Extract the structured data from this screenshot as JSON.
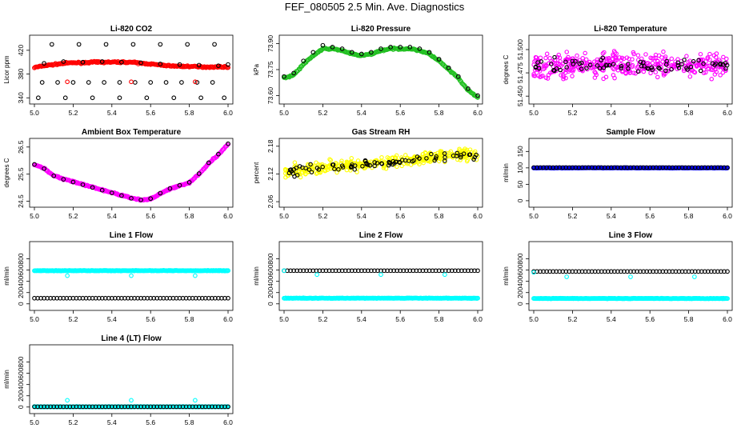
{
  "page": {
    "title": "FEF_080505  2.5 Min. Ave. Diagnostics"
  },
  "chart_data": [
    {
      "id": "co2",
      "type": "scatter",
      "title": "Li-820 CO2",
      "ylabel": "Licor ppm",
      "xlim": [
        5.0,
        6.0
      ],
      "ylim": [
        335,
        440
      ],
      "xticks": [
        "5.0",
        "5.2",
        "5.4",
        "5.6",
        "5.8",
        "6.0"
      ],
      "yticks": [
        "340",
        "380",
        "420"
      ],
      "series": [
        {
          "color": "#ff0000",
          "style": "dense",
          "x": [
            5.0,
            5.05,
            5.1,
            5.15,
            5.2,
            5.25,
            5.3,
            5.35,
            5.4,
            5.45,
            5.5,
            5.55,
            5.6,
            5.65,
            5.7,
            5.75,
            5.8,
            5.85,
            5.9,
            5.95,
            6.0
          ],
          "y": [
            391,
            394,
            396,
            398,
            399,
            399,
            400,
            400,
            400,
            400,
            400,
            398,
            397,
            395,
            394,
            393,
            393,
            392,
            392,
            392,
            392
          ]
        },
        {
          "color": "#000000",
          "style": "circles",
          "x": [
            5.02,
            5.09,
            5.16,
            5.23,
            5.3,
            5.37,
            5.44,
            5.51,
            5.58,
            5.65,
            5.72,
            5.79,
            5.86,
            5.93,
            5.98,
            5.04,
            5.12,
            5.2,
            5.28,
            5.36,
            5.44,
            5.52,
            5.6,
            5.68,
            5.76,
            5.84,
            5.92
          ],
          "y": [
            340,
            430,
            340,
            430,
            340,
            430,
            340,
            430,
            340,
            430,
            340,
            430,
            340,
            430,
            340,
            366,
            366,
            366,
            366,
            366,
            366,
            366,
            366,
            366,
            366,
            366,
            366
          ]
        },
        {
          "color": "#000000",
          "style": "circles",
          "x": [
            5.05,
            5.15,
            5.25,
            5.35,
            5.45,
            5.55,
            5.65,
            5.75,
            5.85,
            5.95,
            6.0
          ],
          "y": [
            398,
            401,
            400,
            401,
            400,
            399,
            397,
            396,
            395,
            394,
            396
          ]
        },
        {
          "color": "#ff0000",
          "style": "circles",
          "x": [
            5.17,
            5.5,
            5.83
          ],
          "y": [
            367,
            367,
            367
          ]
        }
      ]
    },
    {
      "id": "pressure",
      "type": "scatter",
      "title": "Li-820 Pressure",
      "ylabel": "kPa",
      "xlim": [
        5.0,
        6.0
      ],
      "ylim": [
        73.57,
        73.93
      ],
      "xticks": [
        "5.0",
        "5.2",
        "5.4",
        "5.6",
        "5.8",
        "6.0"
      ],
      "yticks": [
        "73.60",
        "73.75",
        "73.90"
      ],
      "series": [
        {
          "color": "#22c022",
          "style": "dense",
          "x": [
            5.0,
            5.05,
            5.1,
            5.15,
            5.2,
            5.25,
            5.3,
            5.35,
            5.4,
            5.45,
            5.5,
            5.55,
            5.6,
            5.65,
            5.7,
            5.75,
            5.8,
            5.85,
            5.9,
            5.95,
            6.0
          ],
          "y": [
            73.7,
            73.72,
            73.78,
            73.83,
            73.87,
            73.87,
            73.86,
            73.84,
            73.83,
            73.84,
            73.86,
            73.87,
            73.87,
            73.87,
            73.86,
            73.84,
            73.8,
            73.75,
            73.7,
            73.63,
            73.59
          ]
        },
        {
          "color": "#000000",
          "style": "circles",
          "x": [
            5.0,
            5.05,
            5.1,
            5.15,
            5.2,
            5.25,
            5.3,
            5.35,
            5.4,
            5.45,
            5.5,
            5.55,
            5.6,
            5.65,
            5.7,
            5.75,
            5.8,
            5.85,
            5.9,
            5.95,
            6.0
          ],
          "y": [
            73.71,
            73.73,
            73.8,
            73.85,
            73.89,
            73.88,
            73.87,
            73.85,
            73.84,
            73.85,
            73.87,
            73.88,
            73.88,
            73.88,
            73.87,
            73.85,
            73.81,
            73.76,
            73.71,
            73.64,
            73.6
          ]
        }
      ]
    },
    {
      "id": "licor-temp",
      "type": "scatter",
      "title": "Li-820 Temperature",
      "ylabel": "degrees C",
      "xlim": [
        5.0,
        6.0
      ],
      "ylim": [
        51.445,
        51.512
      ],
      "xticks": [
        "5.0",
        "5.2",
        "5.4",
        "5.6",
        "5.8",
        "6.0"
      ],
      "yticks": [
        "51.450",
        "51.475",
        "51.500"
      ],
      "series": [
        {
          "color": "#ff00ff",
          "style": "noise",
          "center": 51.483,
          "spread": 0.013,
          "x": [
            5.0,
            6.0
          ]
        },
        {
          "color": "#000000",
          "style": "noise-circles",
          "center": 51.483,
          "spread": 0.008,
          "x": [
            5.0,
            6.0
          ]
        }
      ]
    },
    {
      "id": "box-temp",
      "type": "scatter",
      "title": "Ambient Box Temperature",
      "ylabel": "degrees C",
      "xlim": [
        5.0,
        6.0
      ],
      "ylim": [
        24.4,
        26.7
      ],
      "xticks": [
        "5.0",
        "5.2",
        "5.4",
        "5.6",
        "5.8",
        "6.0"
      ],
      "yticks": [
        "24.5",
        "25.5",
        "26.5"
      ],
      "series": [
        {
          "color": "#ff00ff",
          "style": "dense",
          "x": [
            5.0,
            5.05,
            5.1,
            5.15,
            5.2,
            5.25,
            5.3,
            5.35,
            5.4,
            5.45,
            5.5,
            5.55,
            5.6,
            5.65,
            5.7,
            5.75,
            5.8,
            5.85,
            5.9,
            5.95,
            6.0
          ],
          "y": [
            25.85,
            25.72,
            25.45,
            25.32,
            25.22,
            25.12,
            25.02,
            24.92,
            24.82,
            24.72,
            24.62,
            24.55,
            24.58,
            24.78,
            24.96,
            25.08,
            25.18,
            25.5,
            25.9,
            26.22,
            26.6
          ]
        },
        {
          "color": "#000000",
          "style": "circles",
          "x": [
            5.0,
            5.05,
            5.1,
            5.15,
            5.2,
            5.25,
            5.3,
            5.35,
            5.4,
            5.45,
            5.5,
            5.55,
            5.6,
            5.65,
            5.7,
            5.75,
            5.8,
            5.85,
            5.9,
            5.95,
            6.0
          ],
          "y": [
            25.86,
            25.7,
            25.44,
            25.31,
            25.21,
            25.11,
            25.01,
            24.91,
            24.81,
            24.71,
            24.61,
            24.55,
            24.6,
            24.8,
            24.97,
            25.09,
            25.2,
            25.52,
            25.92,
            26.24,
            26.62
          ]
        }
      ]
    },
    {
      "id": "gas-rh",
      "type": "scatter",
      "title": "Gas Stream RH",
      "ylabel": "percent",
      "xlim": [
        5.0,
        6.0
      ],
      "ylim": [
        2.055,
        2.19
      ],
      "xticks": [
        "5.0",
        "5.2",
        "5.4",
        "5.6",
        "5.8",
        "6.0"
      ],
      "yticks": [
        "2.06",
        "2.12",
        "2.18"
      ],
      "series": [
        {
          "color": "#ffff00",
          "style": "noise-trend",
          "from": 2.125,
          "to": 2.165,
          "spread": 0.014,
          "x": [
            5.0,
            6.0
          ]
        },
        {
          "color": "#000000",
          "style": "noise-trend-circles",
          "from": 2.125,
          "to": 2.163,
          "spread": 0.01,
          "x": [
            5.0,
            6.0
          ]
        }
      ]
    },
    {
      "id": "sample-flow",
      "type": "scatter",
      "title": "Sample Flow",
      "ylabel": "ml/min",
      "xlim": [
        5.0,
        6.0
      ],
      "ylim": [
        -10,
        180
      ],
      "xticks": [
        "5.0",
        "5.2",
        "5.4",
        "5.6",
        "5.8",
        "6.0"
      ],
      "yticks": [
        "0",
        "50",
        "100",
        "150"
      ],
      "series": [
        {
          "color": "#0000ff",
          "style": "band",
          "level": 100,
          "x": [
            5.0,
            6.0
          ]
        },
        {
          "color": "#000000",
          "style": "line-circles",
          "level": 101,
          "x": [
            5.0,
            6.0
          ]
        }
      ]
    },
    {
      "id": "line1",
      "type": "scatter",
      "title": "Line 1 Flow",
      "ylabel": "ml/min",
      "xlim": [
        5.0,
        6.0
      ],
      "ylim": [
        -60,
        1050
      ],
      "xticks": [
        "5.0",
        "5.2",
        "5.4",
        "5.6",
        "5.8",
        "6.0"
      ],
      "yticks": [
        "0",
        "200",
        "400",
        "600",
        "800"
      ],
      "series": [
        {
          "color": "#00ffff",
          "style": "band",
          "level": 590,
          "x": [
            5.0,
            6.0
          ]
        },
        {
          "color": "#000000",
          "style": "line-circles",
          "level": 100,
          "x": [
            5.0,
            6.0
          ]
        },
        {
          "color": "#00ffff",
          "style": "circles",
          "x": [
            5.17,
            5.5,
            5.83
          ],
          "y": [
            500,
            500,
            500
          ]
        }
      ]
    },
    {
      "id": "line2",
      "type": "scatter",
      "title": "Line 2 Flow",
      "ylabel": "ml/min",
      "xlim": [
        5.0,
        6.0
      ],
      "ylim": [
        -60,
        1050
      ],
      "xticks": [
        "5.0",
        "5.2",
        "5.4",
        "5.6",
        "5.8",
        "6.0"
      ],
      "yticks": [
        "0",
        "200",
        "400",
        "600",
        "800"
      ],
      "series": [
        {
          "color": "#00ffff",
          "style": "band",
          "level": 100,
          "x": [
            5.0,
            6.0
          ]
        },
        {
          "color": "#000000",
          "style": "line-circles",
          "level": 590,
          "x": [
            5.0,
            6.0
          ]
        },
        {
          "color": "#00ffff",
          "style": "circles",
          "x": [
            5.0,
            5.17,
            5.5,
            5.83
          ],
          "y": [
            590,
            520,
            520,
            520
          ]
        }
      ]
    },
    {
      "id": "line3",
      "type": "scatter",
      "title": "Line 3 Flow",
      "ylabel": "ml/min",
      "xlim": [
        5.0,
        6.0
      ],
      "ylim": [
        -60,
        1050
      ],
      "xticks": [
        "5.0",
        "5.2",
        "5.4",
        "5.6",
        "5.8",
        "6.0"
      ],
      "yticks": [
        "0",
        "200",
        "400",
        "600",
        "800"
      ],
      "series": [
        {
          "color": "#00ffff",
          "style": "band",
          "level": 95,
          "x": [
            5.0,
            6.0
          ]
        },
        {
          "color": "#000000",
          "style": "line-circles",
          "level": 575,
          "x": [
            5.0,
            6.0
          ]
        },
        {
          "color": "#00ffff",
          "style": "circles",
          "x": [
            5.0,
            5.17,
            5.5,
            5.83
          ],
          "y": [
            560,
            480,
            480,
            480
          ]
        }
      ]
    },
    {
      "id": "line4",
      "type": "scatter",
      "title": "Line 4 (LT) Flow",
      "ylabel": "ml/min",
      "xlim": [
        5.0,
        6.0
      ],
      "ylim": [
        -60,
        1050
      ],
      "xticks": [
        "5.0",
        "5.2",
        "5.4",
        "5.6",
        "5.8",
        "6.0"
      ],
      "yticks": [
        "0",
        "200",
        "400",
        "600",
        "800"
      ],
      "series": [
        {
          "color": "#00ffff",
          "style": "band",
          "level": 5,
          "x": [
            5.0,
            6.0
          ]
        },
        {
          "color": "#000000",
          "style": "line-circles",
          "level": 5,
          "x": [
            5.0,
            6.0
          ]
        },
        {
          "color": "#00ffff",
          "style": "circles",
          "x": [
            5.17,
            5.5,
            5.83
          ],
          "y": [
            120,
            120,
            120
          ]
        }
      ]
    }
  ]
}
